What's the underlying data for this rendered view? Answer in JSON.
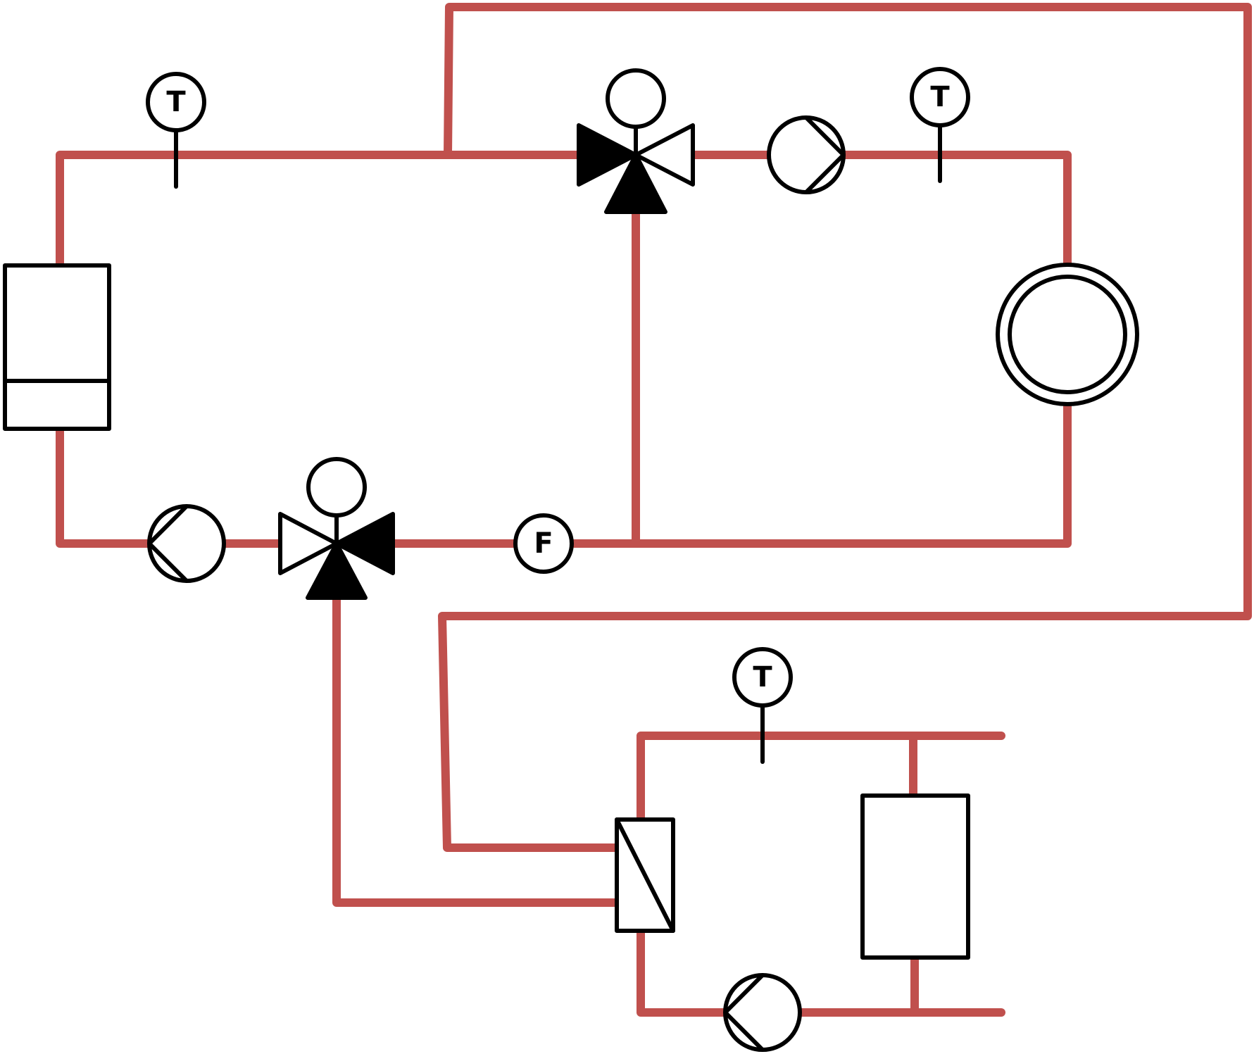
{
  "colors": {
    "pipe": "#c0504d",
    "symbol": "#000000",
    "background": "#ffffff"
  },
  "sensors": {
    "temp_supply_left": "T",
    "temp_supply_right": "T",
    "temp_secondary": "T",
    "flow_return": "F"
  },
  "components": [
    "boiler",
    "pump-return-left",
    "three-way-valve-lower",
    "three-way-valve-upper",
    "pump-supply-right",
    "storage-tank",
    "heat-exchanger",
    "pump-secondary",
    "radiator"
  ]
}
